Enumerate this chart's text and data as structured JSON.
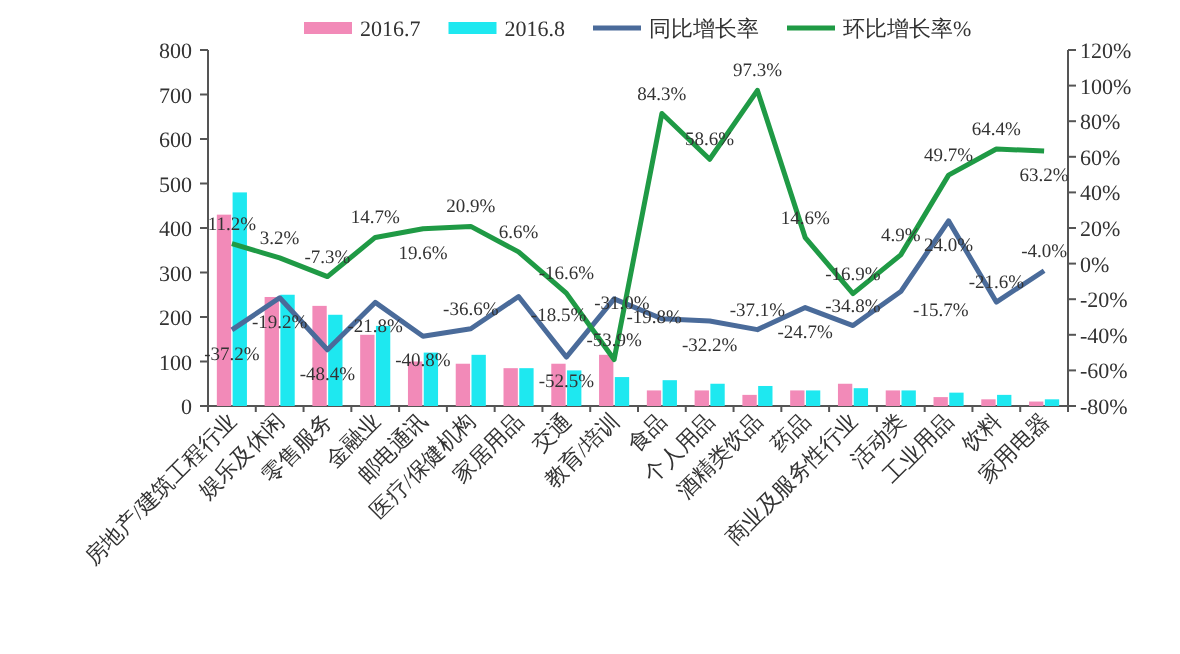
{
  "chart_data": {
    "type": "bar",
    "categories": [
      "房地产/建筑工程行业",
      "娱乐及休闲",
      "零售服务",
      "金融业",
      "邮电通讯",
      "医疗/保健机构",
      "家居用品",
      "交通",
      "教育/培训",
      "食品",
      "个人用品",
      "酒精类饮品",
      "药品",
      "商业及服务性行业",
      "活动类",
      "工业用品",
      "饮料",
      "家用电器"
    ],
    "series": [
      {
        "name": "2016.7",
        "color": "#f28ab8",
        "values": [
          430,
          245,
          225,
          160,
          100,
          95,
          85,
          95,
          115,
          35,
          35,
          25,
          35,
          50,
          35,
          20,
          15,
          10
        ]
      },
      {
        "name": "2016.8",
        "color": "#1ee8f0",
        "values": [
          480,
          250,
          205,
          180,
          120,
          115,
          85,
          80,
          65,
          58,
          50,
          45,
          35,
          40,
          35,
          30,
          25,
          15
        ]
      },
      {
        "name": "同比增长率",
        "type": "line",
        "axis": "y2",
        "color": "#4a6b9a",
        "values": [
          -37.2,
          -19.2,
          -48.4,
          -21.8,
          -40.8,
          -36.6,
          -18.5,
          -52.5,
          -19.8,
          -31.0,
          -32.2,
          -37.1,
          -24.7,
          -34.8,
          -15.7,
          24.0,
          -21.6,
          -4.0
        ],
        "value_labels": [
          "-37.2%",
          "-19.2%",
          "-48.4%",
          "-21.8%",
          "-40.8%",
          "-36.6%",
          "-18.5%",
          "-52.5%",
          "-19.8%",
          "-31.0%",
          "-32.2%",
          "-37.1%",
          "-24.7%",
          "-34.8%",
          "-15.7%",
          "24.0%",
          "-21.6%",
          "-4.0%"
        ]
      },
      {
        "name": "环比增长率%",
        "type": "line",
        "axis": "y2",
        "color": "#1f9a45",
        "values": [
          11.2,
          3.2,
          -7.3,
          14.7,
          19.6,
          20.9,
          6.6,
          -16.6,
          -53.9,
          84.3,
          58.6,
          97.3,
          14.6,
          -16.9,
          4.9,
          49.7,
          64.4,
          63.2
        ],
        "value_labels": [
          "11.2%",
          "3.2%",
          "-7.3%",
          "14.7%",
          "19.6%",
          "20.9%",
          "6.6%",
          "-16.6%",
          "-53.9%",
          "84.3%",
          "58.6%",
          "97.3%",
          "14.6%",
          "-16.9%",
          "4.9%",
          "49.7%",
          "64.4%",
          "63.2%"
        ]
      }
    ],
    "ylim": [
      0,
      800
    ],
    "yticks": [
      0,
      100,
      200,
      300,
      400,
      500,
      600,
      700,
      800
    ],
    "y2lim": [
      -80,
      120
    ],
    "y2ticks": [
      {
        "value": -80,
        "label": "-80%"
      },
      {
        "value": -60,
        "label": "-60%"
      },
      {
        "value": -40,
        "label": "-40%"
      },
      {
        "value": -20,
        "label": "-20%"
      },
      {
        "value": 0,
        "label": "0%"
      },
      {
        "value": 20,
        "label": "20%"
      },
      {
        "value": 40,
        "label": "40%"
      },
      {
        "value": 60,
        "label": "60%"
      },
      {
        "value": 80,
        "label": "80%"
      },
      {
        "value": 100,
        "label": "100%"
      },
      {
        "value": 120,
        "label": "120%"
      }
    ],
    "legend": "top",
    "grid": false
  }
}
